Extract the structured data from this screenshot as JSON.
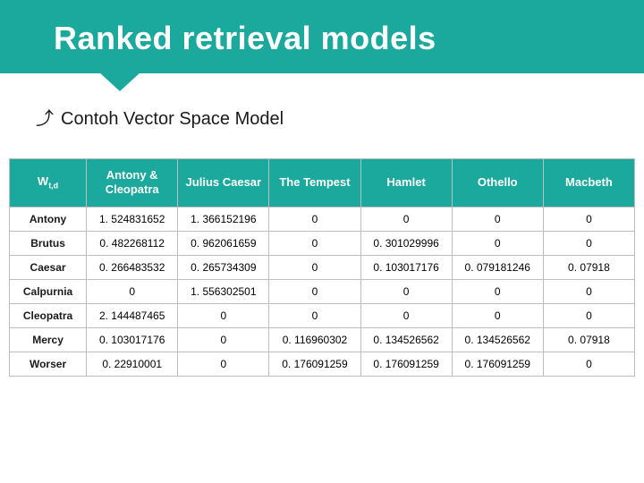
{
  "slide": {
    "title": "Ranked retrieval models",
    "title_fontsize": 36,
    "title_bg": "#1ba89d",
    "title_color": "#ffffff",
    "callout_color": "#1ba89d",
    "background_color": "#ffffff",
    "bullet_glyph": "⤴",
    "bullet_text_leading": "Contoh",
    "bullet_text_rest": " Vector Space Model"
  },
  "table": {
    "type": "table",
    "header_bg": "#1ba89d",
    "header_color": "#ffffff",
    "border_color": "#bdbdbd",
    "cell_fontsize": 12,
    "header_fontsize": 13,
    "rowhead_fontweight": 700,
    "corner_label_main": "W",
    "corner_label_sub": "t,d",
    "columns": [
      "Antony & Cleopatra",
      "Julius Caesar",
      "The Tempest",
      "Hamlet",
      "Othello",
      "Macbeth"
    ],
    "rows": [
      {
        "term": "Antony",
        "values": [
          "1. 524831652",
          "1. 366152196",
          "0",
          "0",
          "0",
          "0"
        ]
      },
      {
        "term": "Brutus",
        "values": [
          "0. 482268112",
          "0. 962061659",
          "0",
          "0. 301029996",
          "0",
          "0"
        ]
      },
      {
        "term": "Caesar",
        "values": [
          "0. 266483532",
          "0. 265734309",
          "0",
          "0. 103017176",
          "0. 079181246",
          "0. 07918"
        ]
      },
      {
        "term": "Calpurnia",
        "values": [
          "0",
          "1. 556302501",
          "0",
          "0",
          "0",
          "0"
        ]
      },
      {
        "term": "Cleopatra",
        "values": [
          "2. 144487465",
          "0",
          "0",
          "0",
          "0",
          "0"
        ]
      },
      {
        "term": "Mercy",
        "values": [
          "0. 103017176",
          "0",
          "0. 116960302",
          "0. 134526562",
          "0. 134526562",
          "0. 07918"
        ]
      },
      {
        "term": "Worser",
        "values": [
          "0. 22910001",
          "0",
          "0. 176091259",
          "0. 176091259",
          "0. 176091259",
          "0"
        ]
      }
    ]
  }
}
